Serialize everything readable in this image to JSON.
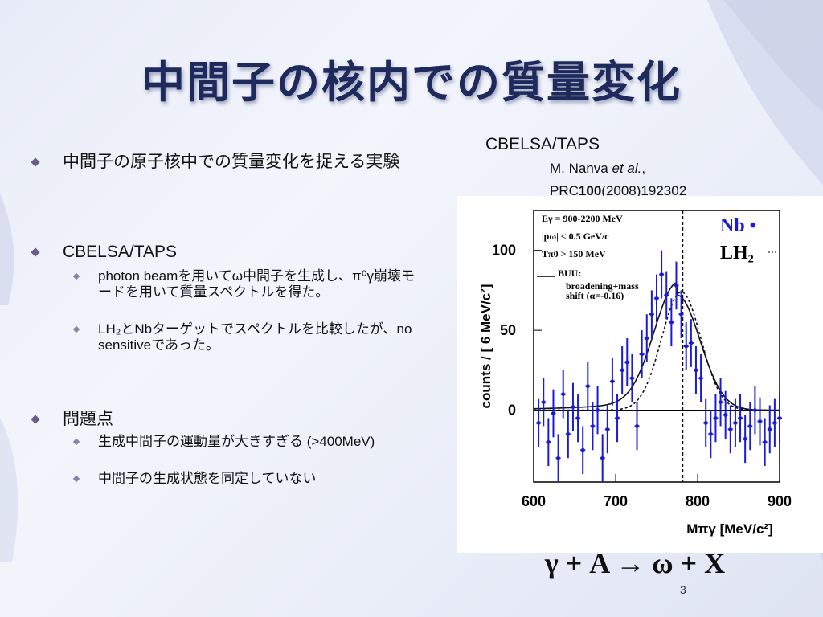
{
  "slide": {
    "title": "中間子の核内での質量変化",
    "page_number": "3"
  },
  "bullets": [
    {
      "text": "中間子の原子核中での質量変化を捉える実験"
    },
    {
      "text": "CBELSA/TAPS",
      "sub": [
        "photon beamを用いてω中間子を生成し、π⁰γ崩壊モードを用いて質量スペクトルを得た。",
        "LH₂とNbターゲットでスペクトルを比較したが、no sensitiveであった。"
      ]
    },
    {
      "text": "問題点",
      "sub": [
        "生成中間子の運動量が大きすぎる (>400MeV)",
        "中間子の生成状態を同定していない"
      ]
    }
  ],
  "reference": {
    "experiment": "CBELSA/TAPS",
    "authors": "M. Nanva",
    "etal": "et al.",
    "journal": "PRC",
    "volume": "100",
    "rest": "(2008)192302"
  },
  "reaction": "γ + A → ω + X",
  "figure": {
    "ylabel": "counts / [ 6 MeV/c²]",
    "xlabel": "Mπγ [MeV/c²]",
    "x_ticks": [
      "600",
      "700",
      "800",
      "900"
    ],
    "y_ticks": [
      "0",
      "50",
      "100"
    ],
    "legend_nb": "Nb •",
    "legend_lh2": "LH₂",
    "cuts": [
      "Eγ = 900-2200 MeV",
      "|pω| < 0.5 GeV/c",
      "Tπ0 > 150 MeV"
    ],
    "buu_label": "BUU:",
    "buu_desc1": "broadening+mass",
    "buu_desc2": "shift (α=-0.16)",
    "colors": {
      "data": "#1a1adb",
      "curve": "#111111"
    }
  },
  "chart_data": {
    "type": "scatter",
    "xlabel": "Mπγ [MeV/c²]",
    "ylabel": "counts / [ 6 MeV/c²]",
    "xlim": [
      600,
      900
    ],
    "ylim": [
      -45,
      125
    ],
    "series": [
      {
        "name": "Nb",
        "x": [
          606,
          612,
          618,
          624,
          630,
          636,
          642,
          648,
          654,
          660,
          666,
          672,
          678,
          684,
          690,
          696,
          702,
          708,
          714,
          720,
          726,
          732,
          738,
          744,
          750,
          756,
          762,
          768,
          774,
          780,
          786,
          792,
          798,
          804,
          810,
          816,
          822,
          828,
          834,
          840,
          846,
          852,
          858,
          864,
          870,
          876,
          882,
          888,
          894,
          900
        ],
        "y": [
          -8,
          5,
          -20,
          -2,
          -30,
          10,
          -15,
          2,
          -5,
          -25,
          15,
          -10,
          0,
          -30,
          -12,
          18,
          -5,
          25,
          30,
          20,
          -10,
          35,
          45,
          60,
          70,
          85,
          72,
          55,
          78,
          60,
          40,
          42,
          25,
          20,
          -8,
          -15,
          -5,
          5,
          -3,
          -12,
          -8,
          -5,
          -18,
          -10,
          0,
          -7,
          -20,
          -12,
          -8,
          -5
        ],
        "err": [
          15,
          15,
          15,
          15,
          15,
          15,
          15,
          15,
          15,
          15,
          15,
          15,
          15,
          15,
          15,
          15,
          15,
          15,
          15,
          15,
          15,
          15,
          15,
          15,
          15,
          15,
          15,
          15,
          15,
          15,
          15,
          15,
          15,
          15,
          15,
          15,
          15,
          15,
          15,
          15,
          15,
          15,
          15,
          15,
          15,
          15,
          15,
          15,
          15,
          15
        ]
      }
    ]
  }
}
